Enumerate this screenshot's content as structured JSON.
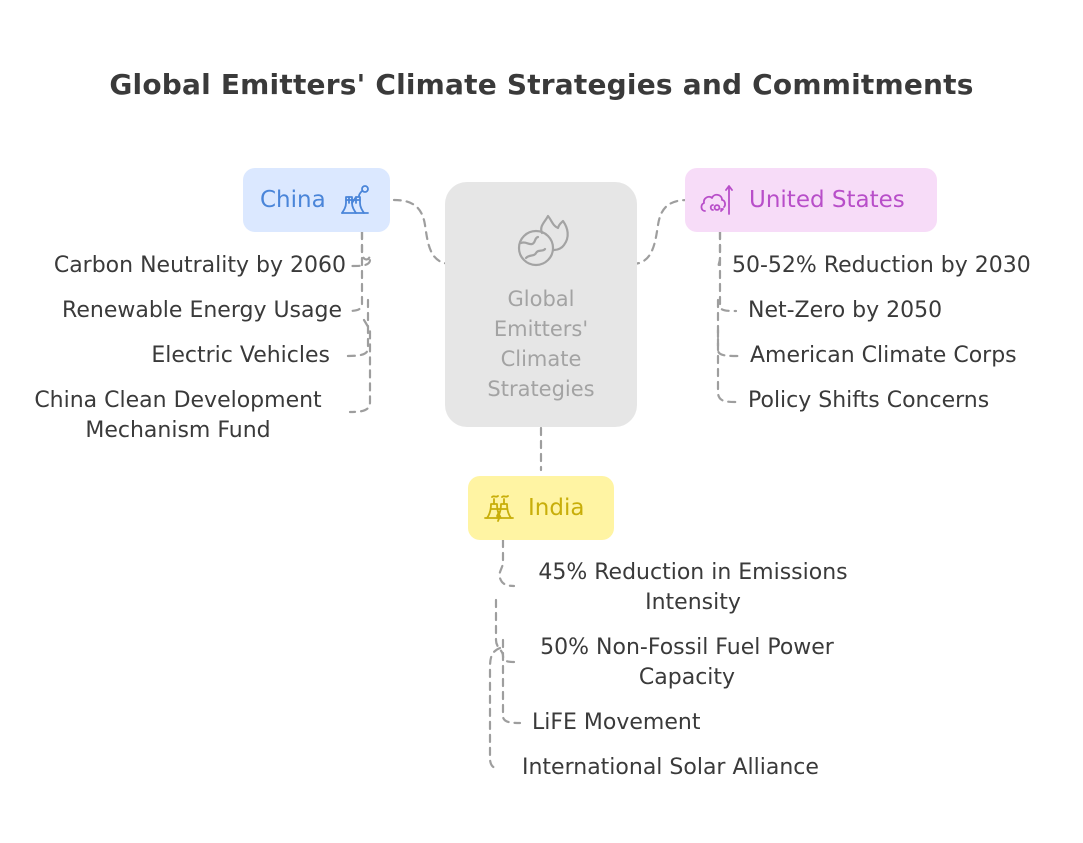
{
  "title": "Global Emitters' Climate Strategies and Commitments",
  "center": {
    "label_lines": [
      "Global",
      "Emitters'",
      "Climate",
      "Strategies"
    ],
    "icon": "globe-fire-icon"
  },
  "china": {
    "label": "China",
    "icon": "factory-smoke-icon",
    "color": "#4a85d9",
    "background": "#dbe8ff",
    "items": [
      "Carbon Neutrality by 2060",
      "Renewable Energy Usage",
      "Electric Vehicles",
      "China Clean Development Mechanism Fund"
    ]
  },
  "united_states": {
    "label": "United States",
    "icon": "co2-cloud-up-icon",
    "color": "#b84ec9",
    "background": "#f7dcf8",
    "items": [
      "50-52% Reduction by 2030",
      "Net-Zero by 2050",
      "American Climate Corps",
      "Policy Shifts Concerns"
    ]
  },
  "india": {
    "label": "India",
    "icon": "power-plant-icon",
    "color": "#c8ae0a",
    "background": "#fff4a3",
    "items": [
      "45% Reduction in Emissions Intensity",
      "50% Non-Fossil Fuel Power Capacity",
      "LiFE Movement",
      "International Solar Alliance"
    ]
  },
  "connector_color": "#9e9e9e"
}
